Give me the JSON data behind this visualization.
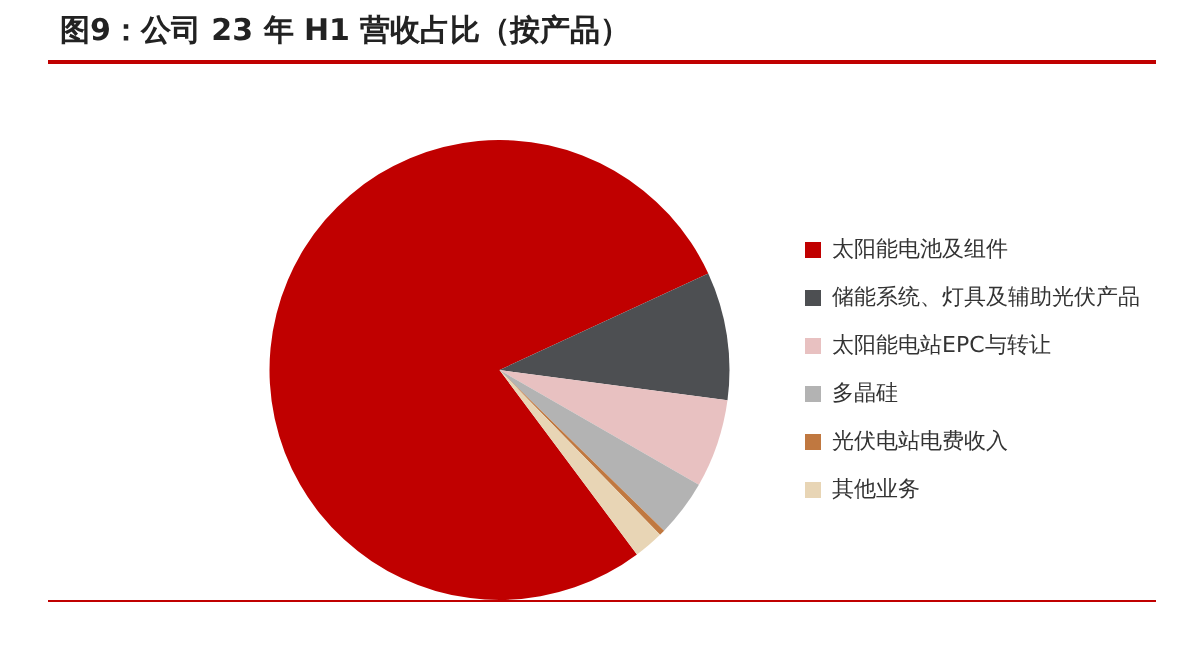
{
  "chart_data": {
    "type": "pie",
    "title": "图9：公司 23 年 H1 营收占比（按产品）",
    "categories": [
      "太阳能电池及组件",
      "储能系统、灯具及辅助光伏产品",
      "太阳能电站EPC与转让",
      "多晶硅",
      "光伏电站电费收入",
      "其他业务"
    ],
    "values": [
      78.3,
      9.0,
      6.2,
      4.0,
      0.4,
      2.1
    ],
    "colors": [
      "#c00000",
      "#4d4f52",
      "#e8c1c1",
      "#b3b3b3",
      "#c07840",
      "#e8d5b5"
    ],
    "legend": "right"
  }
}
